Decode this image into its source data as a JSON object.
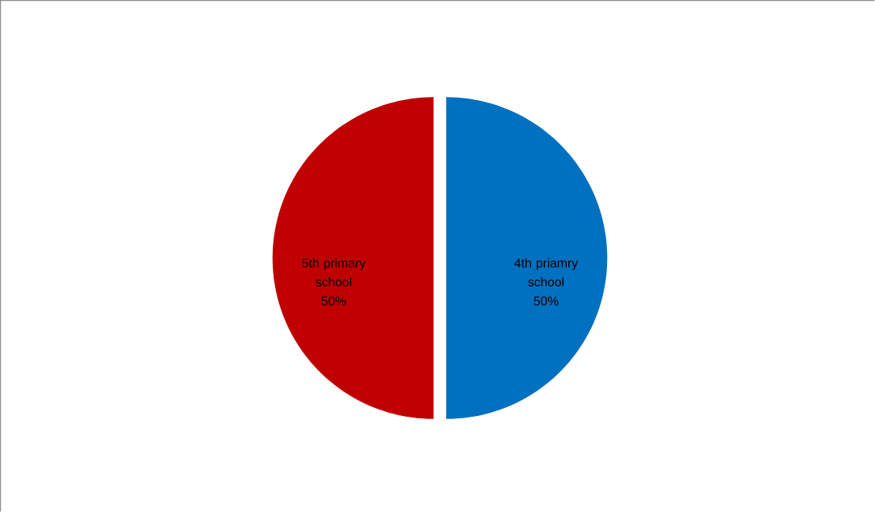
{
  "chart_data": {
    "type": "pie",
    "categories": [
      "4th priamry school",
      "5th primary school"
    ],
    "values": [
      50,
      50
    ],
    "colors": [
      "#0070c0",
      "#c00000"
    ],
    "value_labels": [
      "50%",
      "50%"
    ]
  }
}
